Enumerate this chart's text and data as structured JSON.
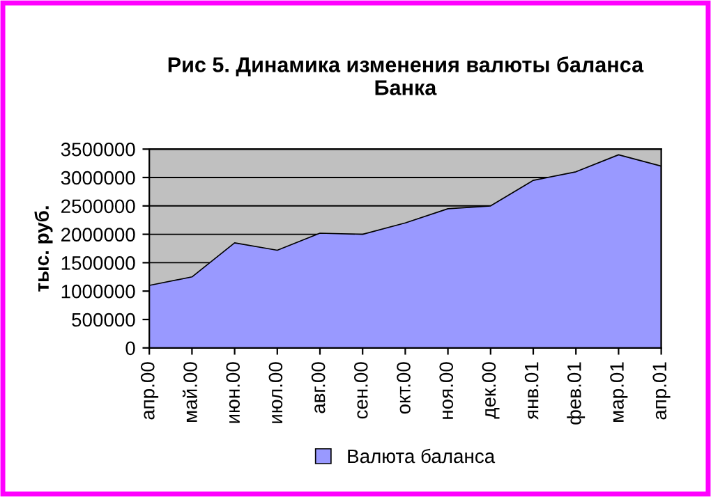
{
  "chart_data": {
    "type": "area",
    "title": "Рис 5. Динамика изменения валюты баланса\nБанка",
    "ylabel": "тыс. руб.",
    "categories": [
      "апр.00",
      "май.00",
      "июн.00",
      "июл.00",
      "авг.00",
      "сен.00",
      "окт.00",
      "ноя.00",
      "дек.00",
      "янв.01",
      "фев.01",
      "мар.01",
      "апр.01"
    ],
    "series": [
      {
        "name": "Валюта баланса",
        "color": "#9999ff",
        "values": [
          1100000,
          1250000,
          1850000,
          1720000,
          2020000,
          2000000,
          2200000,
          2450000,
          2500000,
          2950000,
          3100000,
          3400000,
          3200000
        ]
      }
    ],
    "ylim": [
      0,
      3500000
    ],
    "yticks": [
      0,
      500000,
      1000000,
      1500000,
      2000000,
      2500000,
      3000000,
      3500000
    ],
    "grid": "y",
    "legend": "bottom"
  }
}
